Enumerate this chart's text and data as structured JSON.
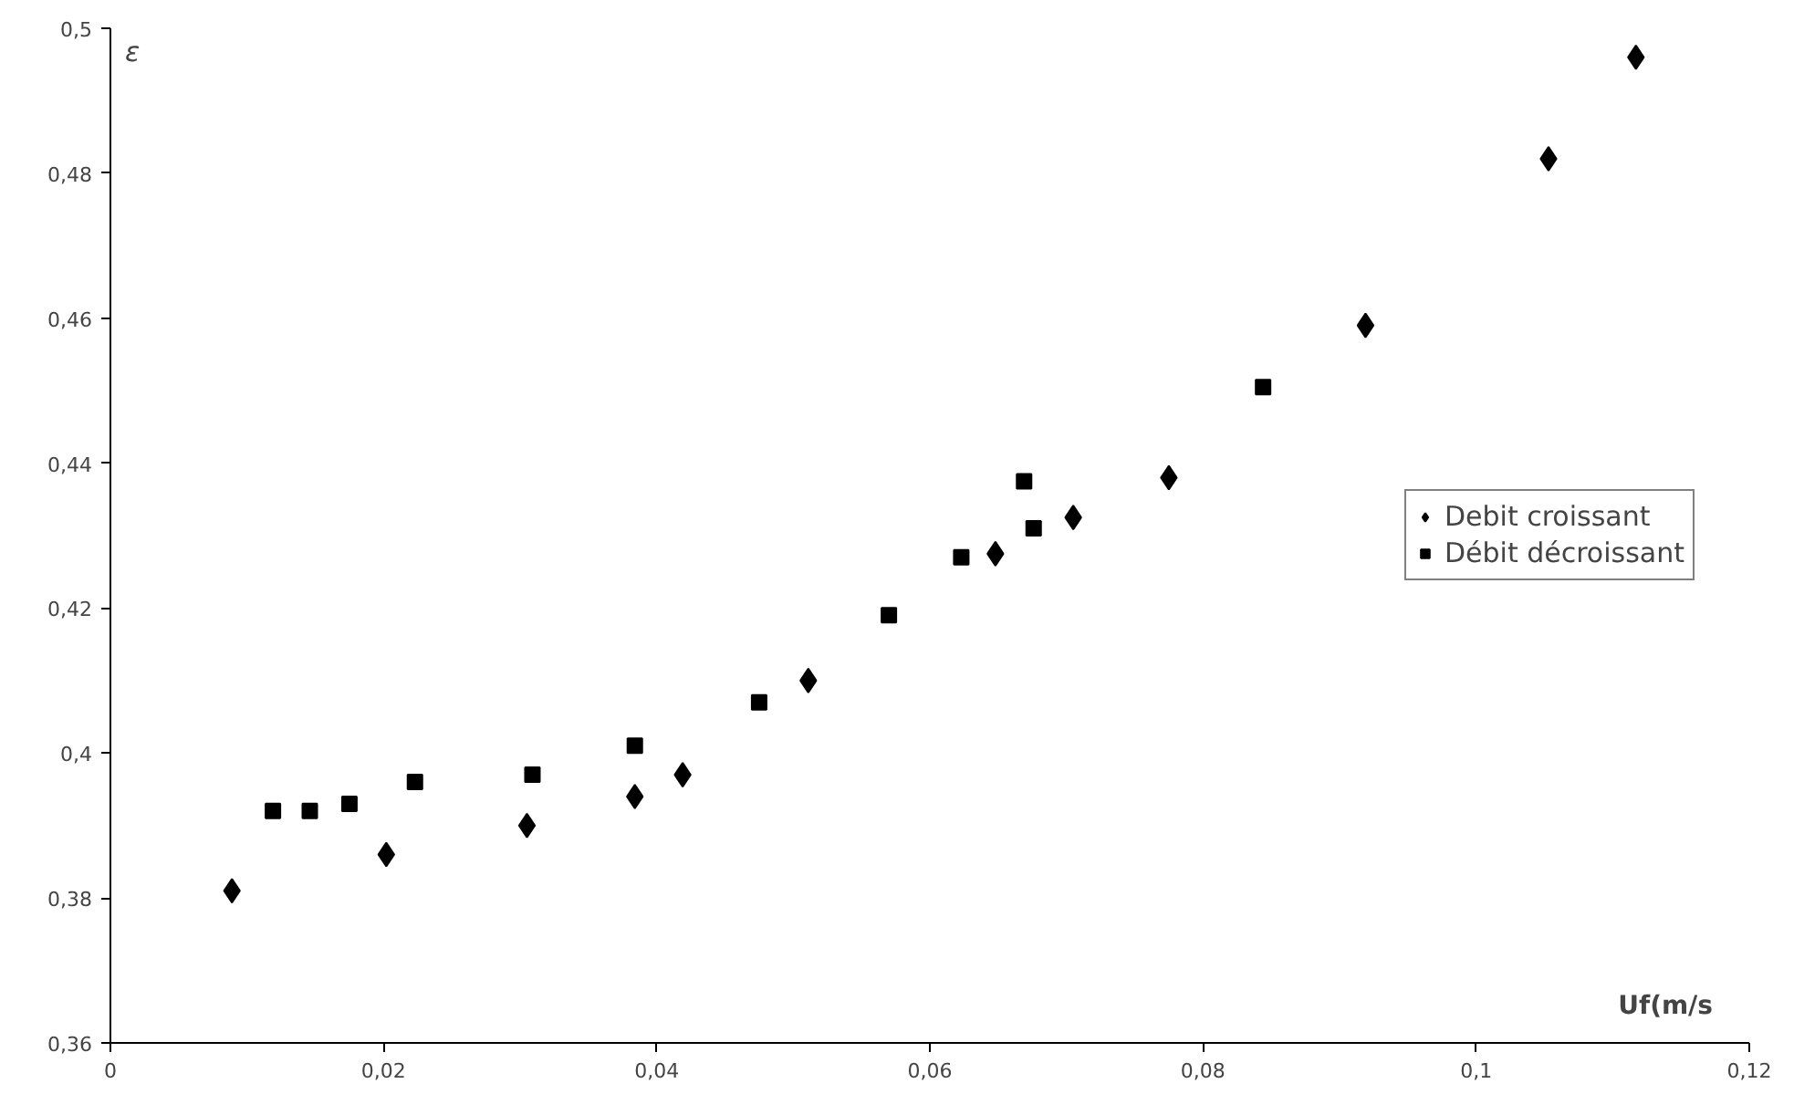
{
  "chart_data": {
    "type": "scatter",
    "xlabel": "Uf(m/s",
    "ylabel": "ε",
    "xlim": [
      0,
      0.12
    ],
    "ylim": [
      0.36,
      0.5
    ],
    "xticks": [
      0,
      {
        "value": 0.02,
        "label": "0,02"
      },
      {
        "value": 0.04,
        "label": "0,04"
      },
      {
        "value": 0.06,
        "label": "0,06"
      },
      {
        "value": 0.08,
        "label": "0,08"
      },
      {
        "value": 0.1,
        "label": "0,1"
      },
      {
        "value": 0.12,
        "label": "0,12"
      }
    ],
    "yticks": [
      {
        "value": 0.36,
        "label": "0,36"
      },
      {
        "value": 0.38,
        "label": "0,38"
      },
      {
        "value": 0.4,
        "label": "0,4"
      },
      {
        "value": 0.42,
        "label": "0,42"
      },
      {
        "value": 0.44,
        "label": "0,44"
      },
      {
        "value": 0.46,
        "label": "0,46"
      },
      {
        "value": 0.48,
        "label": "0,48"
      },
      {
        "value": 0.5,
        "label": "0,5"
      }
    ],
    "grid": false,
    "legend": "right",
    "series": [
      {
        "name": "Debit croissant",
        "color": "#000000",
        "marker": "diamond",
        "x": [
          0.0089,
          0.0202,
          0.0305,
          0.0384,
          0.0419,
          0.0511,
          0.0648,
          0.0705,
          0.0775,
          0.0919,
          0.1053,
          0.1117
        ],
        "values": [
          0.381,
          0.386,
          0.39,
          0.394,
          0.397,
          0.41,
          0.4275,
          0.4325,
          0.438,
          0.459,
          0.482,
          0.496
        ]
      },
      {
        "name": "Débit décroissant",
        "color": "#000000",
        "marker": "square",
        "x": [
          0.0119,
          0.0146,
          0.0175,
          0.0223,
          0.0309,
          0.0384,
          0.0475,
          0.057,
          0.0623,
          0.0669,
          0.0676,
          0.0844
        ],
        "values": [
          0.392,
          0.392,
          0.393,
          0.396,
          0.397,
          0.401,
          0.407,
          0.419,
          0.427,
          0.4375,
          0.431,
          0.4505
        ]
      }
    ]
  }
}
